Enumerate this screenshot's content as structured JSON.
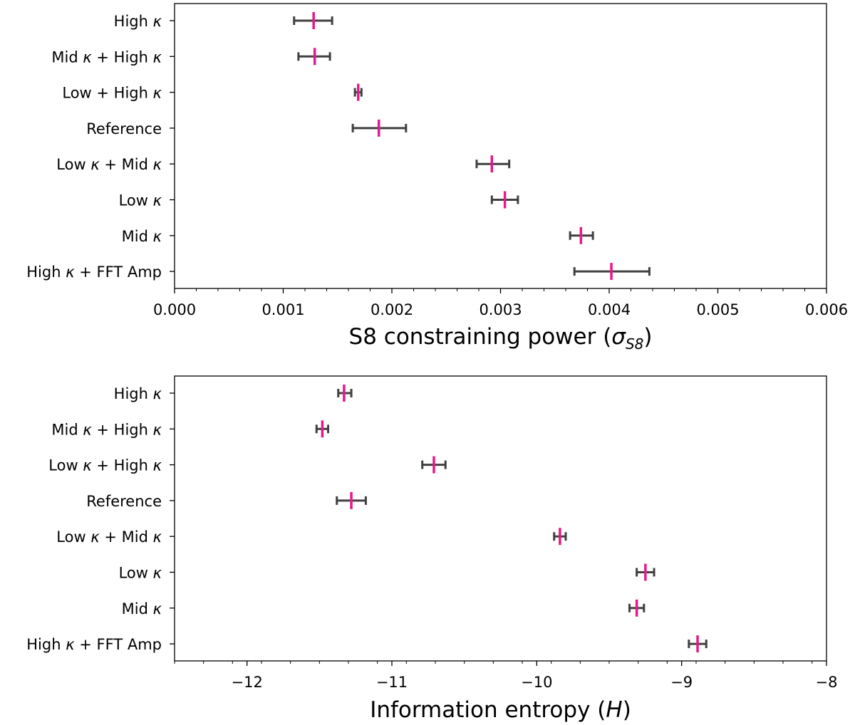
{
  "chart_data": [
    {
      "type": "scatter",
      "title": "",
      "xlabel": "S8 constraining power (σ_S8)",
      "ylabel": "",
      "xlim": [
        0.0,
        0.006
      ],
      "xticks": [
        0.0,
        0.001,
        0.002,
        0.003,
        0.004,
        0.005,
        0.006
      ],
      "xtick_labels": [
        "0.000",
        "0.001",
        "0.002",
        "0.003",
        "0.004",
        "0.005",
        "0.006"
      ],
      "grid": false,
      "marker_color": "#e6198a",
      "errorbar_color": "#404040",
      "categories": [
        "High κ",
        "Mid κ + High κ",
        "Low + High κ",
        "Reference",
        "Low κ + Mid κ",
        "Low κ",
        "Mid κ",
        "High κ + FFT Amp"
      ],
      "values": [
        0.00128,
        0.00129,
        0.00169,
        0.00188,
        0.00292,
        0.00304,
        0.00374,
        0.00402
      ],
      "err_low": [
        0.0011,
        0.00114,
        0.00166,
        0.00164,
        0.00278,
        0.00292,
        0.00364,
        0.00368
      ],
      "err_high": [
        0.00145,
        0.00143,
        0.00172,
        0.00213,
        0.00308,
        0.00316,
        0.00385,
        0.00437
      ]
    },
    {
      "type": "scatter",
      "title": "",
      "xlabel": "Information entropy (H)",
      "ylabel": "",
      "xlim": [
        -12.5,
        -8.0
      ],
      "xticks": [
        -12,
        -11,
        -10,
        -9,
        -8
      ],
      "xtick_labels": [
        "−12",
        "−11",
        "−10",
        "−9",
        "−8"
      ],
      "grid": false,
      "marker_color": "#e6198a",
      "errorbar_color": "#404040",
      "categories": [
        "High κ",
        "Mid κ + High κ",
        "Low κ + High κ",
        "Reference",
        "Low κ + Mid κ",
        "Low κ",
        "Mid κ",
        "High κ + FFT Amp"
      ],
      "values": [
        -11.33,
        -11.48,
        -10.71,
        -11.28,
        -9.84,
        -9.25,
        -9.31,
        -8.89
      ],
      "err_low": [
        -11.37,
        -11.52,
        -10.79,
        -11.38,
        -9.88,
        -9.31,
        -9.36,
        -8.95
      ],
      "err_high": [
        -11.28,
        -11.44,
        -10.63,
        -11.18,
        -9.8,
        -9.19,
        -9.26,
        -8.83
      ]
    }
  ]
}
